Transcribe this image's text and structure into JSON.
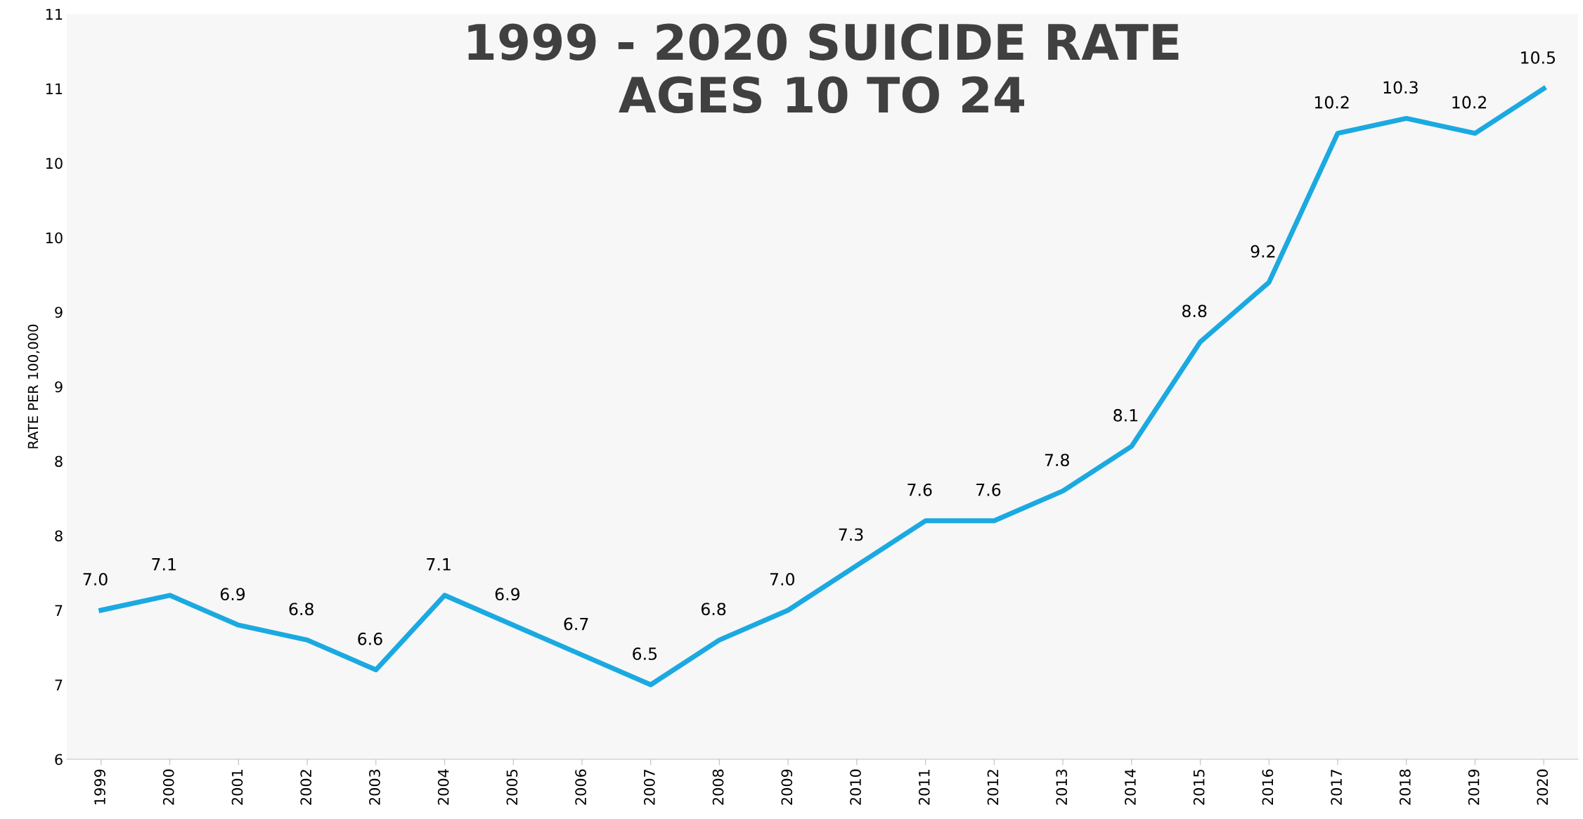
{
  "chart_data": {
    "type": "line",
    "title": "1999 - 2020 SUICIDE RATE\nAGES 10 TO 24",
    "ylabel": "RATE PER 100,000",
    "categories": [
      "1999",
      "2000",
      "2001",
      "2002",
      "2003",
      "2004",
      "2005",
      "2006",
      "2007",
      "2008",
      "2009",
      "2010",
      "2011",
      "2012",
      "2013",
      "2014",
      "2015",
      "2016",
      "2017",
      "2018",
      "2019",
      "2020"
    ],
    "series": [
      {
        "color": "#1ba9e1",
        "values": [
          7.0,
          7.1,
          6.9,
          6.8,
          6.6,
          7.1,
          6.9,
          6.7,
          6.5,
          6.8,
          7.0,
          7.3,
          7.6,
          7.6,
          7.8,
          8.1,
          8.8,
          9.2,
          10.2,
          10.3,
          10.2,
          10.5
        ],
        "value_labels": [
          "7.0",
          "7.1",
          "6.9",
          "6.8",
          "6.6",
          "7.1",
          "6.9",
          "6.7",
          "6.5",
          "6.8",
          "7.0",
          "7.3",
          "7.6",
          "7.6",
          "7.8",
          "8.1",
          "8.8",
          "9.2",
          "10.2",
          "10.3",
          "10.2",
          "10.5"
        ]
      }
    ],
    "ylim": [
      6,
      11
    ],
    "yticks": [
      6,
      {
        "value": 6.5,
        "label": "7"
      },
      7,
      {
        "value": 7.5,
        "label": "8"
      },
      8,
      {
        "value": 8.5,
        "label": "9"
      },
      9,
      {
        "value": 9.5,
        "label": "10"
      },
      10,
      {
        "value": 10.5,
        "label": "11"
      },
      11
    ],
    "grid": false,
    "legend": false,
    "marker": "none",
    "line_style": "solid"
  }
}
